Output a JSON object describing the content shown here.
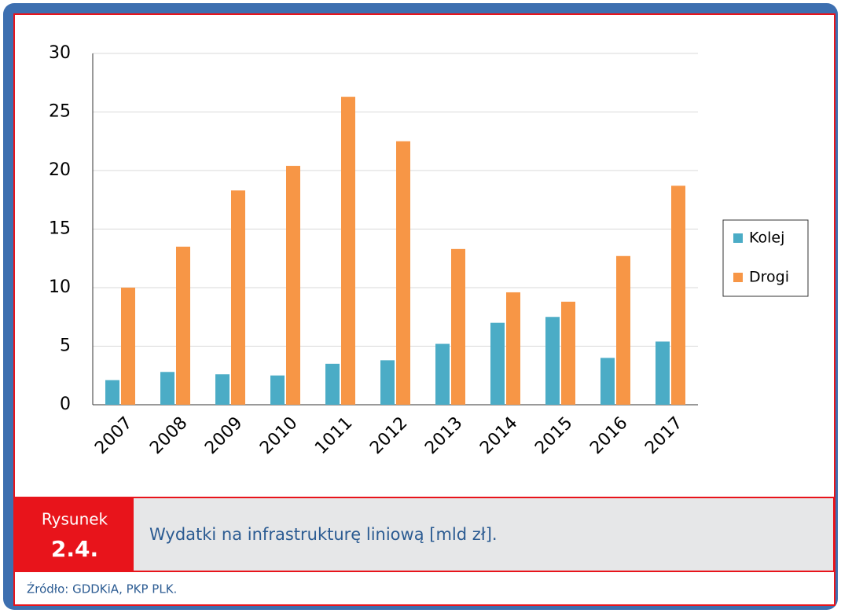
{
  "chart_data": {
    "type": "bar",
    "categories": [
      "2007",
      "2008",
      "2009",
      "2010",
      "1011",
      "2012",
      "2013",
      "2014",
      "2015",
      "2016",
      "2017"
    ],
    "series": [
      {
        "name": "Kolej",
        "color": "#4bacc6",
        "values": [
          2.1,
          2.8,
          2.6,
          2.5,
          3.5,
          3.8,
          5.2,
          7.0,
          7.5,
          4.0,
          5.4
        ]
      },
      {
        "name": "Drogi",
        "color": "#f79646",
        "values": [
          10.0,
          13.5,
          18.3,
          20.4,
          26.3,
          22.5,
          13.3,
          9.6,
          8.8,
          12.7,
          18.7
        ]
      }
    ],
    "ylim": [
      0,
      30
    ],
    "yticks": [
      0,
      5,
      10,
      15,
      20,
      25,
      30
    ],
    "grid": true,
    "legend": "right"
  },
  "caption": {
    "label": "Rysunek",
    "number": "2.4.",
    "text": "Wydatki na infrastrukturę liniową [mld zł]."
  },
  "source": "Źródło: GDDKiA, PKP PLK."
}
